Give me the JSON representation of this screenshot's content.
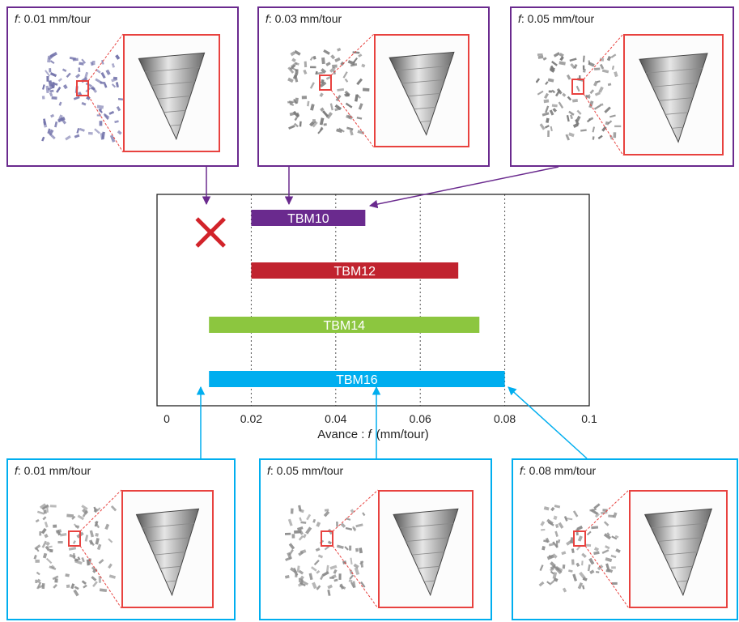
{
  "chart_data": {
    "type": "bar",
    "orientation": "horizontal",
    "series": [
      {
        "name": "TBM10",
        "range": [
          0.02,
          0.047
        ],
        "color": "#6a2a8e"
      },
      {
        "name": "TBM12",
        "range": [
          0.02,
          0.069
        ],
        "color": "#c1232f"
      },
      {
        "name": "TBM14",
        "range": [
          0.01,
          0.074
        ],
        "color": "#8cc63f"
      },
      {
        "name": "TBM16",
        "range": [
          0.01,
          0.08
        ],
        "color": "#00aeef"
      }
    ],
    "xlabel_prefix": "Avance : ",
    "xlabel_var": "f",
    "xlabel_unit": "(mm/tour)",
    "xlim": [
      0,
      0.1
    ],
    "xticks": [
      "0",
      "0.02",
      "0.04",
      "0.06",
      "0.08",
      "0.1"
    ],
    "xtick_values": [
      0,
      0.02,
      0.04,
      0.06,
      0.08,
      0.1
    ],
    "vertical_grid": [
      0.02,
      0.04,
      0.06,
      0.08
    ],
    "reject_marker": {
      "symbol": "✕",
      "at": 0.01,
      "row": 0,
      "color": "#d2232a"
    },
    "grid": "dotted-vertical"
  },
  "panels": {
    "top": [
      {
        "var": "f",
        "text": ": 0.01 mm/tour",
        "points_to": 0.01,
        "border": "#6a2a8e",
        "chips": "#6f6fa8"
      },
      {
        "var": "f",
        "text": ": 0.03 mm/tour",
        "points_to": 0.03,
        "border": "#6a2a8e",
        "chips": "#777777"
      },
      {
        "var": "f",
        "text": ": 0.05 mm/tour",
        "points_to": 0.047,
        "border": "#6a2a8e",
        "chips": "#777777"
      }
    ],
    "bottom": [
      {
        "var": "f",
        "text": ": 0.01 mm/tour",
        "points_to": 0.01,
        "border": "#00aeef",
        "chips": "#8a8a8a"
      },
      {
        "var": "f",
        "text": ": 0.05 mm/tour",
        "points_to": 0.05,
        "border": "#00aeef",
        "chips": "#8a8a8a"
      },
      {
        "var": "f",
        "text": ": 0.08 mm/tour",
        "points_to": 0.08,
        "border": "#00aeef",
        "chips": "#8a8a8a"
      }
    ]
  }
}
